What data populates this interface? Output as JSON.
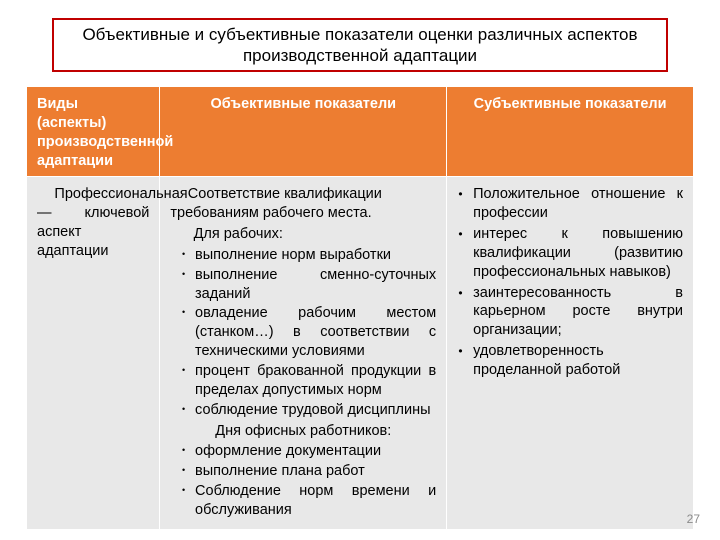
{
  "title": "Объективные и субъективные показатели оценки различных аспектов производственной адаптации",
  "title_border_color": "#c00000",
  "header_bg": "#ed7d31",
  "header_fg": "#ffffff",
  "body_bg": "#e8e8e8",
  "columns": {
    "c1": "Виды (аспекты) производственной адаптации",
    "c2": "Объективные показатели",
    "c3": "Субъективные показатели"
  },
  "col_widths": {
    "c1": "20%",
    "c2": "43%",
    "c3": "37%"
  },
  "row1": {
    "aspect": "Профессиональная — ключевой аспект адаптации",
    "obj_lead1": "Соответствие квалификации требованиям рабочего места.",
    "obj_lead2": "Для рабочих:",
    "obj_list1": [
      "выполнение норм выработки",
      "выполнение сменно-суточных заданий",
      "овладение рабочим местом (станком…) в соответствии с техническими условиями",
      "процент бракованной продукции в пределах допустимых норм",
      "соблюдение трудовой дисциплины"
    ],
    "obj_lead3": "Дня офисных работников:",
    "obj_list2": [
      "оформление документации",
      "выполнение плана работ",
      "Соблюдение норм времени и обслуживания"
    ],
    "subj_list": [
      "Положительное отношение к профессии",
      "интерес к повышению квалификации (развитию профессиональных навыков)",
      "заинтересованность в карьерном росте внутри организации;",
      "удовлетворенность проделанной работой"
    ]
  },
  "page_number": "27"
}
